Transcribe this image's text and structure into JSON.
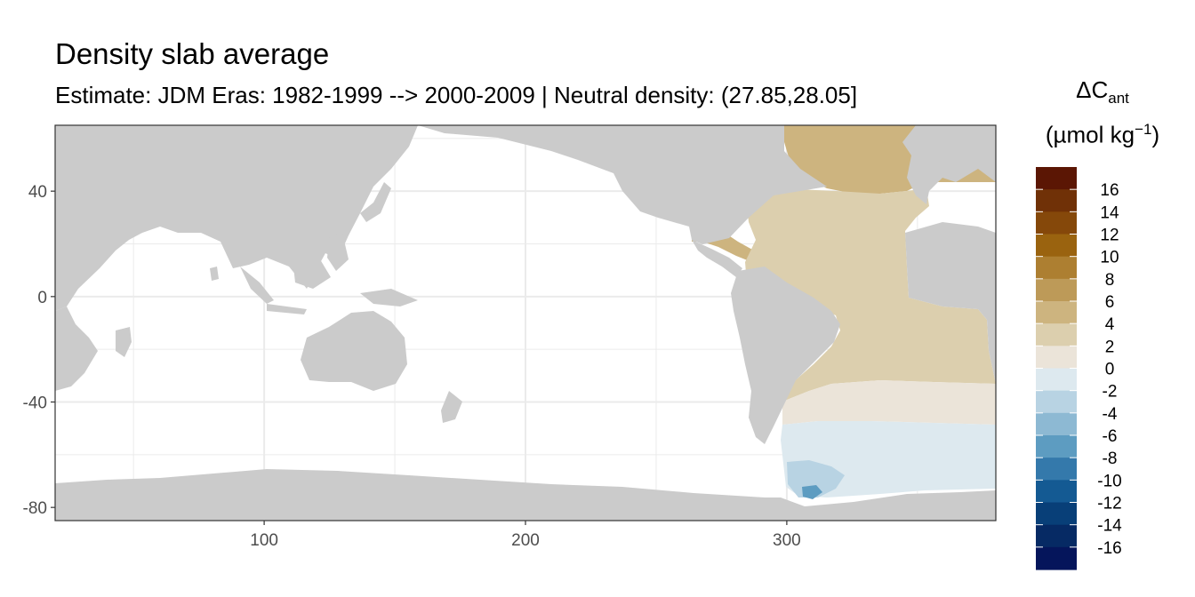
{
  "title": "Density slab average",
  "subtitle": "Estimate: JDM Eras: 1982-1999 --> 2000-2009 | Neutral density: (27.85,28.05]",
  "legend": {
    "title_symbol": "ΔC",
    "title_subscript": "ant",
    "unit_open": "(µmol kg",
    "unit_sup": "−1",
    "unit_close": ")",
    "labels": [
      "16",
      "14",
      "12",
      "10",
      "8",
      "6",
      "4",
      "2",
      "0",
      "-2",
      "-4",
      "-6",
      "-8",
      "-10",
      "-12",
      "-14",
      "-16"
    ],
    "colors": [
      "#5b1604",
      "#703107",
      "#85480a",
      "#9a630f",
      "#ad7f31",
      "#bd9a58",
      "#cdb47f",
      "#dccfae",
      "#ebe4d9",
      "#dde9ef",
      "#b8d3e3",
      "#8db9d3",
      "#5d9cc1",
      "#3479ab",
      "#145a93",
      "#083f78",
      "#062a64",
      "#05155b"
    ]
  },
  "axes": {
    "x_ticks": [
      100,
      200,
      300
    ],
    "y_ticks": [
      40,
      0,
      -40,
      -80
    ],
    "x_range": [
      20,
      380
    ],
    "y_range": [
      -85,
      65
    ]
  },
  "colors": {
    "land": "#cbcbcb",
    "ocean_nodata": "#ffffff",
    "grid": "#ebebeb",
    "panel_border": "#333333"
  }
}
